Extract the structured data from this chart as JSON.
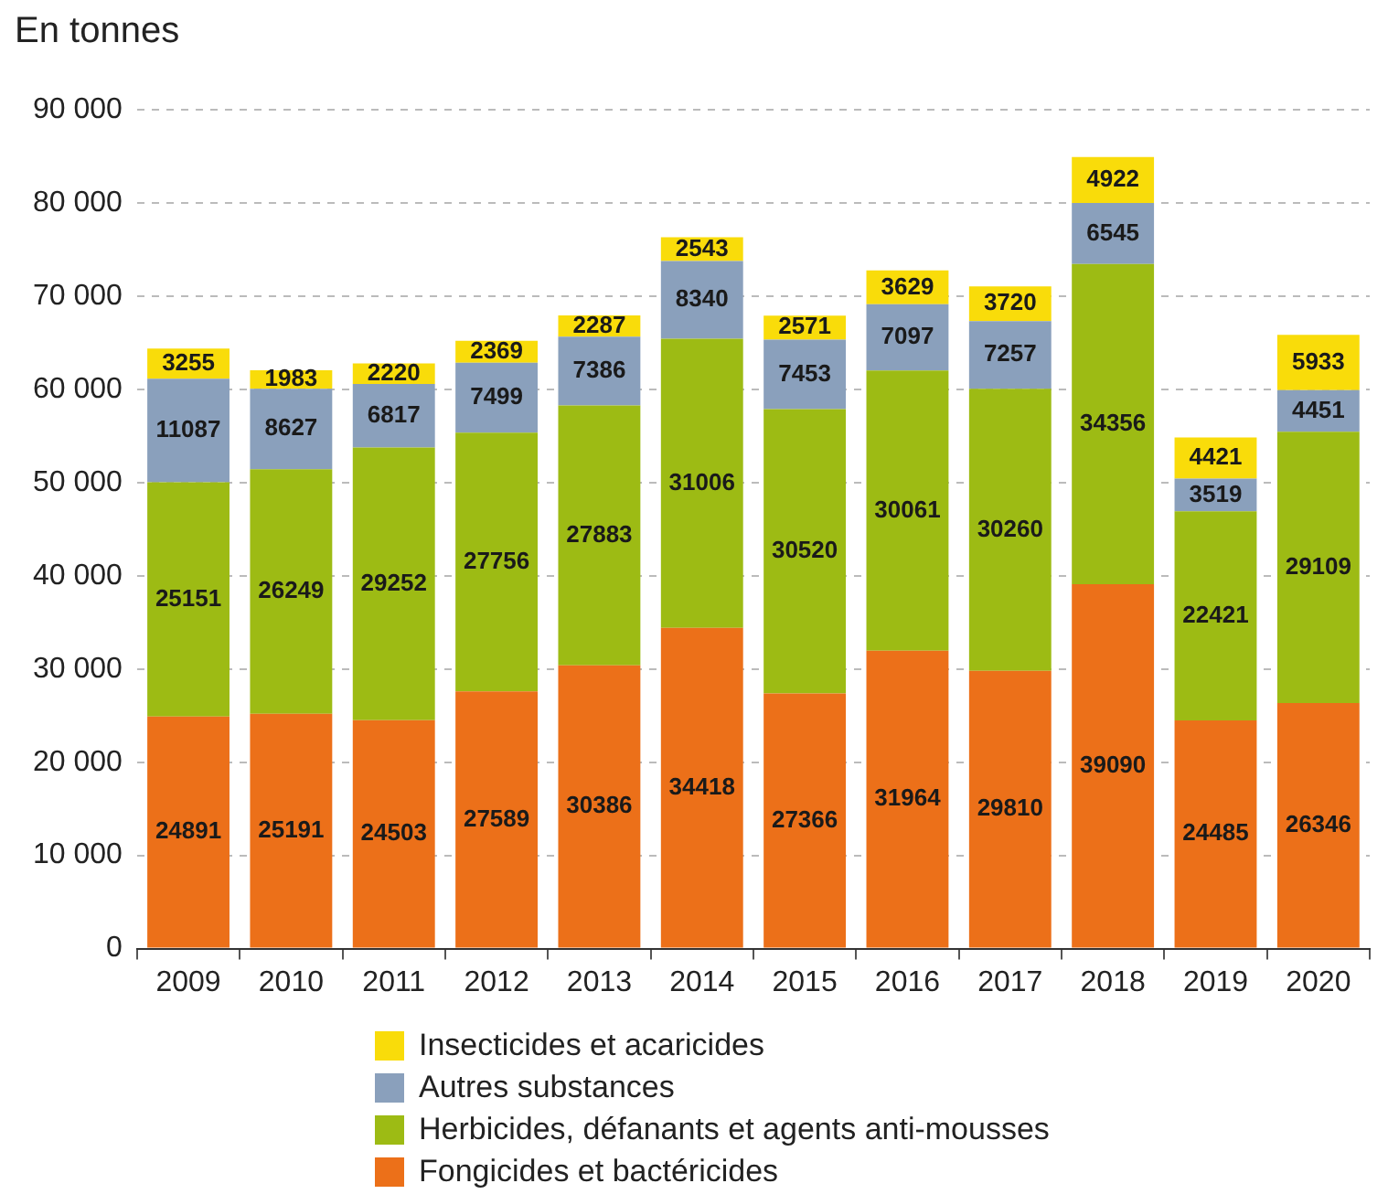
{
  "chart_data": {
    "type": "bar",
    "ylabel": "En tonnes",
    "stacked": true,
    "data_labels": true,
    "grid": "y",
    "legend": "bottom",
    "categories": [
      "2009",
      "2010",
      "2011",
      "2012",
      "2013",
      "2014",
      "2015",
      "2016",
      "2017",
      "2018",
      "2019",
      "2020"
    ],
    "ylim": [
      0,
      90000
    ],
    "yticks": [
      0,
      {
        "value": 10000,
        "label": "10 000"
      },
      {
        "value": 20000,
        "label": "20 000"
      },
      {
        "value": 30000,
        "label": "30 000"
      },
      {
        "value": 40000,
        "label": "40 000"
      },
      {
        "value": 50000,
        "label": "50 000"
      },
      {
        "value": 60000,
        "label": "60 000"
      },
      {
        "value": 70000,
        "label": "70 000"
      },
      {
        "value": 80000,
        "label": "80 000"
      },
      {
        "value": 90000,
        "label": "90 000"
      }
    ],
    "series": [
      {
        "name": "Fongicides et bactéricides",
        "color": "#ec7019",
        "values": [
          24891,
          25191,
          24503,
          27589,
          30386,
          34418,
          27366,
          31964,
          29810,
          39090,
          24485,
          26346
        ]
      },
      {
        "name": "Herbicides, défanants et agents anti-mousses",
        "color": "#9dbb14",
        "values": [
          25151,
          26249,
          29252,
          27756,
          27883,
          31006,
          30520,
          30061,
          30260,
          34356,
          22421,
          29109
        ]
      },
      {
        "name": "Autres substances",
        "color": "#8aa0bc",
        "values": [
          11087,
          8627,
          6817,
          7499,
          7386,
          8340,
          7453,
          7097,
          7257,
          6545,
          3519,
          4451
        ]
      },
      {
        "name": "Insecticides et acaricides",
        "color": "#f9dc0a",
        "values": [
          3255,
          1983,
          2220,
          2369,
          2287,
          2543,
          2571,
          3629,
          3720,
          4922,
          4421,
          5933
        ]
      }
    ]
  }
}
